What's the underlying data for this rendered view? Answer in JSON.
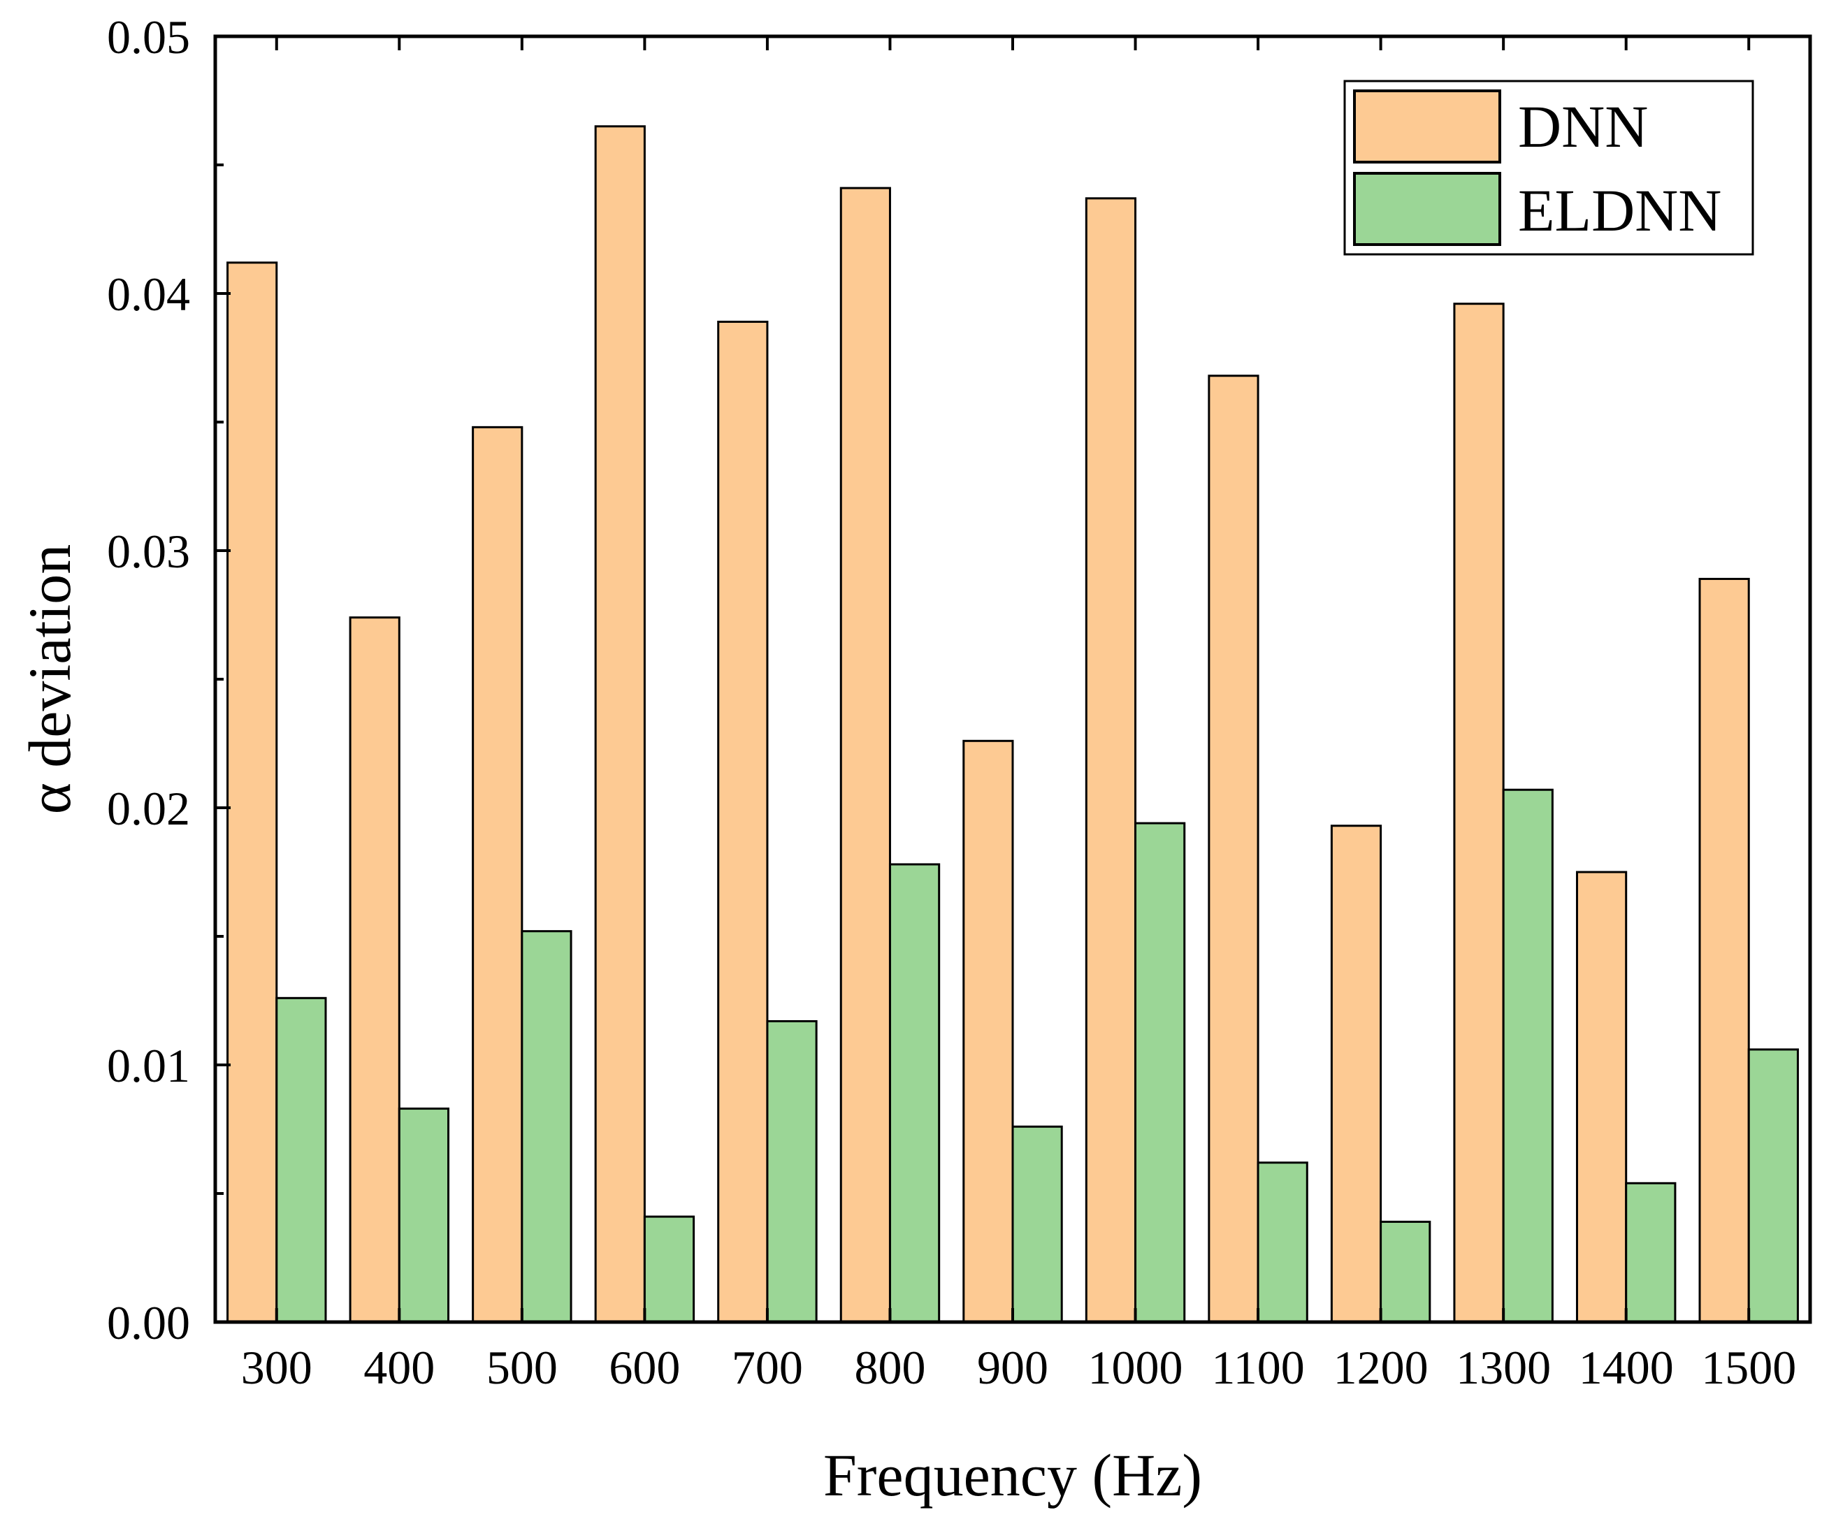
{
  "chart_data": {
    "type": "bar",
    "xlabel": "Frequency (Hz)",
    "ylabel": "α deviation",
    "ylim": [
      0,
      0.05
    ],
    "yticks": [
      "0.00",
      "0.01",
      "0.02",
      "0.03",
      "0.04",
      "0.05"
    ],
    "grid": false,
    "legend_position": "top-right",
    "categories": [
      "300",
      "400",
      "500",
      "600",
      "700",
      "800",
      "900",
      "1000",
      "1100",
      "1200",
      "1300",
      "1400",
      "1500"
    ],
    "series": [
      {
        "name": "DNN",
        "color": "#fdca93",
        "values": [
          0.0412,
          0.0274,
          0.0348,
          0.0465,
          0.0389,
          0.0441,
          0.0226,
          0.0437,
          0.0368,
          0.0193,
          0.0396,
          0.0175,
          0.0289
        ]
      },
      {
        "name": "ELDNN",
        "color": "#9bd696",
        "values": [
          0.0126,
          0.0083,
          0.0152,
          0.0041,
          0.0117,
          0.0178,
          0.0076,
          0.0194,
          0.0062,
          0.0039,
          0.0207,
          0.0054,
          0.0106
        ]
      }
    ]
  }
}
